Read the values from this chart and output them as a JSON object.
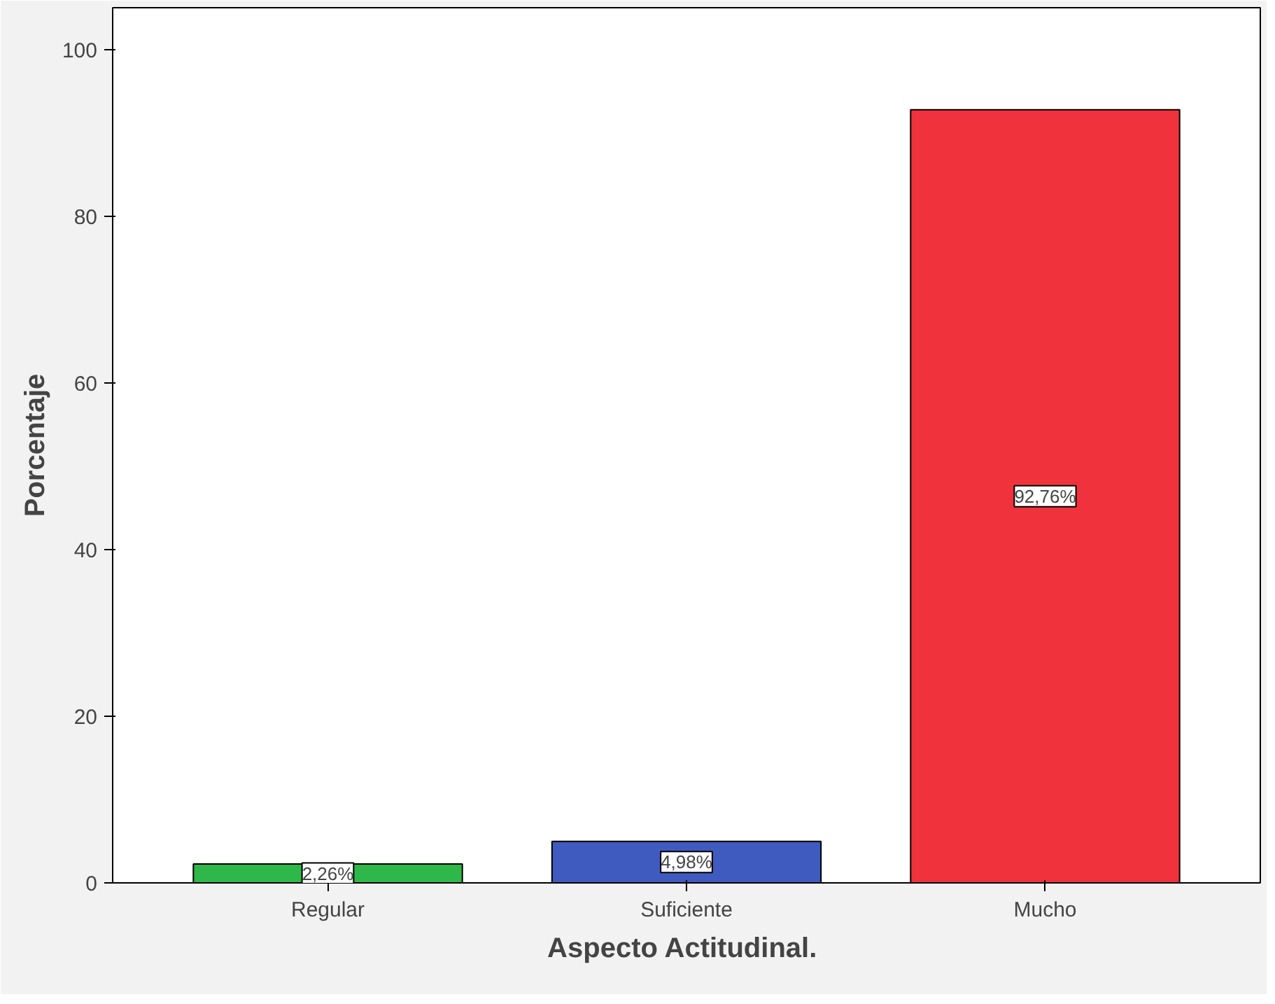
{
  "chart_data": {
    "type": "bar",
    "xlabel": "Aspecto  Actitudinal.",
    "ylabel": "Porcentaje",
    "categories": [
      "Regular",
      "Suficiente",
      "Mucho"
    ],
    "values": [
      2.26,
      4.98,
      92.76
    ],
    "colors": [
      "#2eb84a",
      "#3f5bbf",
      "#f0323c"
    ],
    "value_labels": [
      "2,26%",
      "4,98%",
      "92,76%"
    ],
    "ylim": [
      0,
      105
    ],
    "yticks": [
      0,
      20,
      40,
      60,
      80,
      100
    ],
    "grid": false
  }
}
